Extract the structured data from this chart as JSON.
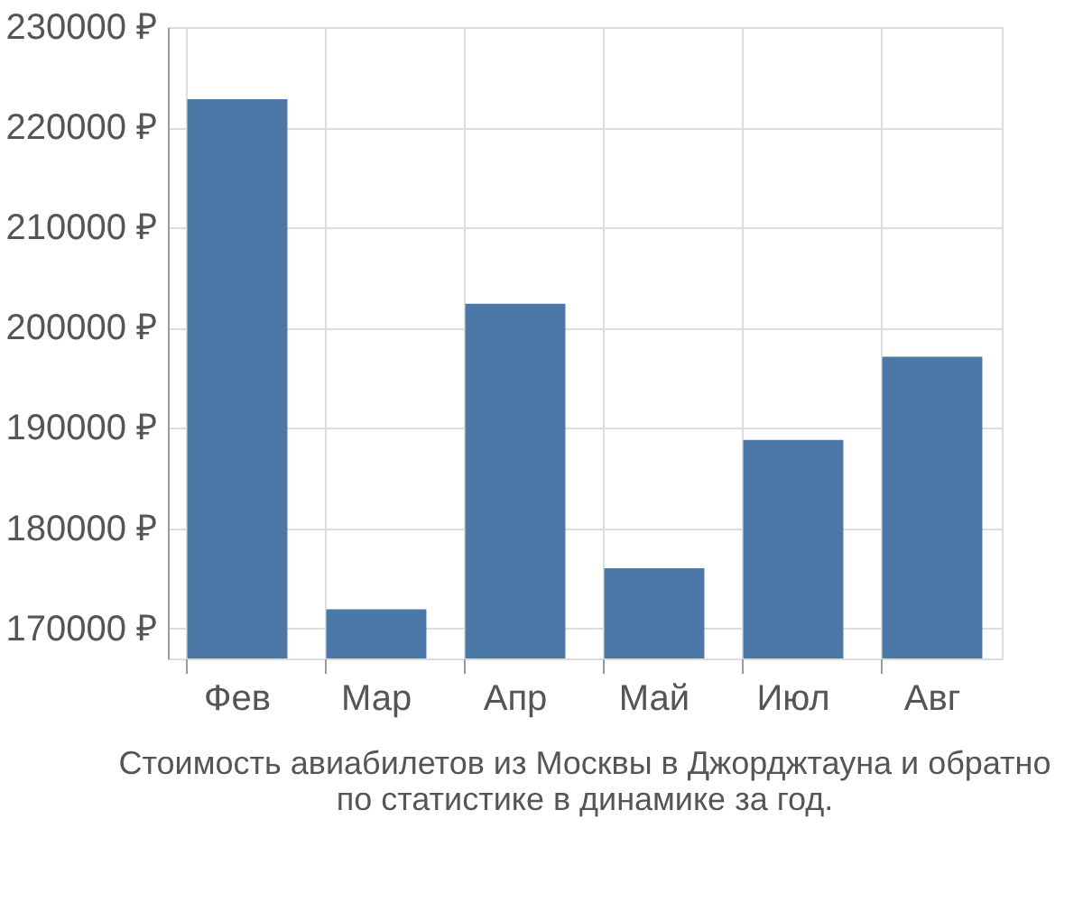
{
  "chart_data": {
    "type": "bar",
    "categories": [
      "Фев",
      "Мар",
      "Апр",
      "Май",
      "Июл",
      "Авг"
    ],
    "values": [
      222800,
      171900,
      202400,
      176000,
      188800,
      197100
    ],
    "color": "#4c78a8",
    "ylim": [
      167000,
      230000
    ],
    "yticks": [
      {
        "value": 170000,
        "label": "170000 ₽"
      },
      {
        "value": 180000,
        "label": "180000 ₽"
      },
      {
        "value": 190000,
        "label": "190000 ₽"
      },
      {
        "value": 200000,
        "label": "200000 ₽"
      },
      {
        "value": 210000,
        "label": "210000 ₽"
      },
      {
        "value": 220000,
        "label": "220000 ₽"
      },
      {
        "value": 230000,
        "label": "230000 ₽"
      }
    ],
    "grid": true,
    "annotations": [
      "Стоимость авиабилетов из Москвы в Джорджтауна и обратно",
      "по статистике в динамике за год."
    ]
  }
}
